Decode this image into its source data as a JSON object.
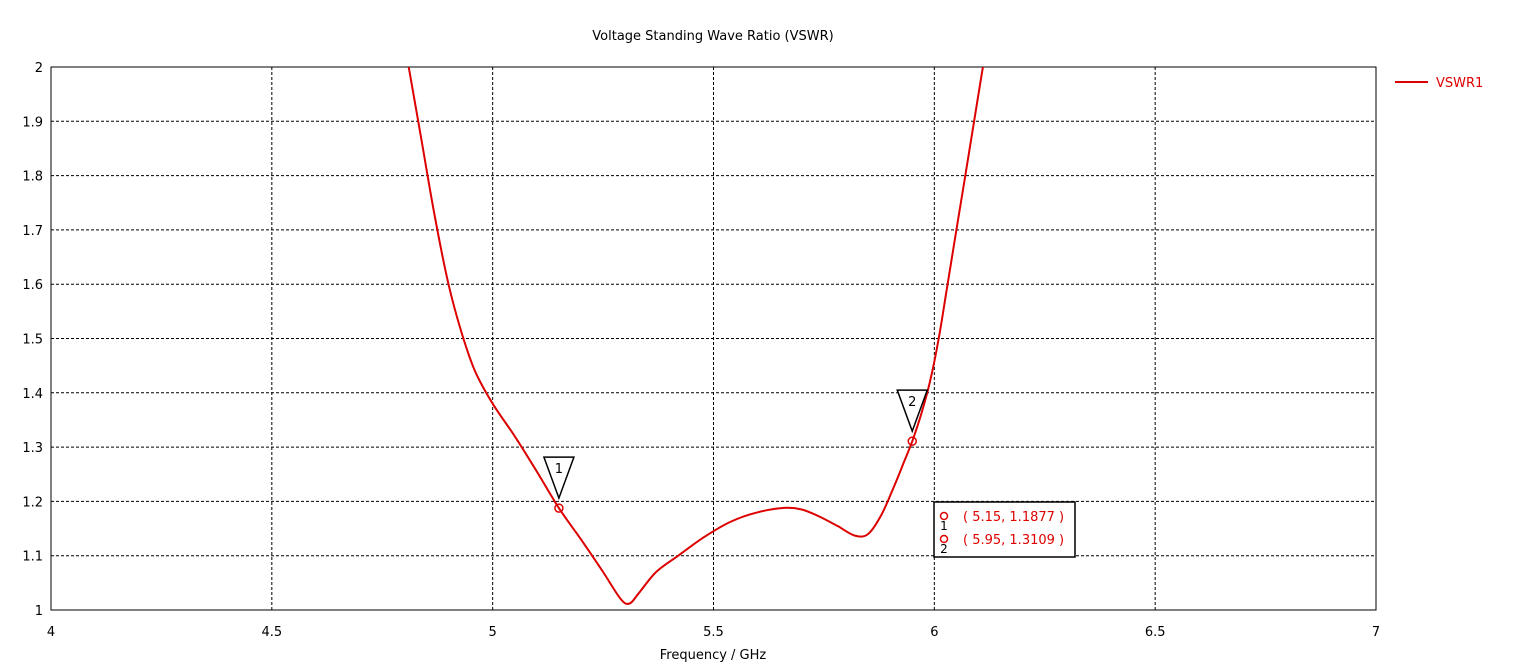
{
  "chart_data": {
    "type": "line",
    "title": "Voltage Standing Wave Ratio (VSWR)",
    "xlabel": "Frequency / GHz",
    "ylabel": "",
    "xlim": [
      4,
      7
    ],
    "ylim": [
      1,
      2
    ],
    "xticks": [
      "4",
      "4.5",
      "5",
      "5.5",
      "6",
      "6.5",
      "7"
    ],
    "yticks": [
      "1",
      "1.1",
      "1.2",
      "1.3",
      "1.4",
      "1.5",
      "1.6",
      "1.7",
      "1.8",
      "1.9",
      "2"
    ],
    "grid": true,
    "legend_position": "top-right",
    "series": [
      {
        "name": "VSWR1",
        "color": "#dd0000",
        "x": [
          4.81,
          4.84,
          4.87,
          4.9,
          4.93,
          4.96,
          5.0,
          5.05,
          5.1,
          5.15,
          5.2,
          5.25,
          5.29,
          5.31,
          5.33,
          5.37,
          5.42,
          5.48,
          5.54,
          5.6,
          5.66,
          5.7,
          5.74,
          5.78,
          5.82,
          5.85,
          5.88,
          5.91,
          5.93,
          5.95,
          5.97,
          5.99,
          6.01,
          6.03,
          6.05,
          6.07,
          6.09,
          6.11
        ],
        "y": [
          2.0,
          1.86,
          1.72,
          1.6,
          1.51,
          1.44,
          1.38,
          1.32,
          1.255,
          1.1877,
          1.13,
          1.07,
          1.02,
          1.012,
          1.03,
          1.07,
          1.1,
          1.135,
          1.163,
          1.18,
          1.188,
          1.185,
          1.172,
          1.155,
          1.137,
          1.14,
          1.175,
          1.23,
          1.27,
          1.3109,
          1.36,
          1.42,
          1.5,
          1.6,
          1.7,
          1.8,
          1.9,
          2.0
        ]
      }
    ],
    "markers": [
      {
        "id": "1",
        "x": 5.15,
        "y": 1.1877,
        "label": "( 5.15, 1.1877 )"
      },
      {
        "id": "2",
        "x": 5.95,
        "y": 1.3109,
        "label": "( 5.95, 1.3109 )"
      }
    ]
  }
}
